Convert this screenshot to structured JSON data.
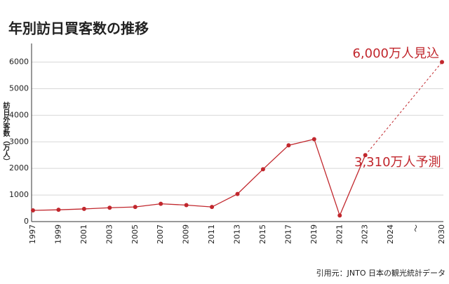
{
  "chart_data": {
    "type": "line",
    "title": "年別訪日買客数の推移",
    "y_label": "訪日外客数（万人）",
    "categories": [
      "1997",
      "1999",
      "2001",
      "2003",
      "2005",
      "2007",
      "2009",
      "2011",
      "2013",
      "2015",
      "2017",
      "2019",
      "2021",
      "2023",
      "2024",
      "～",
      "2030"
    ],
    "series": [
      {
        "name": "訪日外客数",
        "color": "#c1272d",
        "values": [
          422,
          444,
          477,
          521,
          550,
          670,
          620,
          550,
          1040,
          1970,
          2870,
          3100,
          230,
          2500,
          null,
          null,
          6000
        ]
      }
    ],
    "ylim": [
      0,
      6700
    ],
    "yticks": [
      0,
      1000,
      2000,
      3000,
      4000,
      5000,
      6000
    ],
    "grid": true,
    "annotations": [
      "6,000万人見込",
      "3,310万人予測"
    ],
    "source": "引用元：JNTO 日本の観光統計データ"
  }
}
